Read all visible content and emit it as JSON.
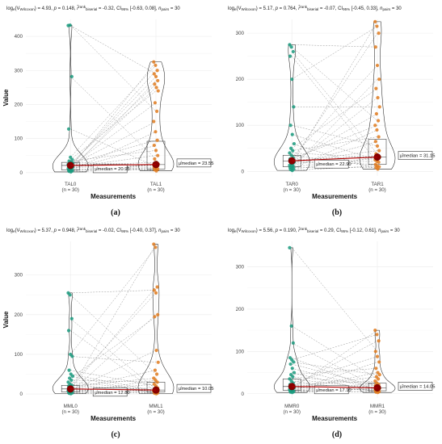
{
  "chart_data": [
    {
      "type": "scatter",
      "panel_label": "(a)",
      "subtitle": "logₑ(V_Wilcoxon) = 4.93, p = 0.148, r̂_biserial^rank = -0.32, CI₉₅% [-0.63, 0.08], n_pairs = 30",
      "subtitle_parts": {
        "v": "4.93",
        "p": "0.148",
        "r": "-0.32",
        "ci": "[-0.63, 0.08]",
        "n": "30"
      },
      "xlabel": "Measurements",
      "ylabel": "Value",
      "ylim": [
        -10,
        450
      ],
      "yticks": [
        0,
        100,
        200,
        300,
        400
      ],
      "groups": [
        {
          "name": "TAL0",
          "n_label": "(n = 30)",
          "color": "#1a9a7e",
          "median": 20.95,
          "median_label": "μ̂median = 20.95",
          "q1": 8,
          "q3": 30,
          "values": [
            432,
            433,
            282,
            128,
            45,
            38,
            34,
            30,
            28,
            26,
            25,
            24,
            23,
            22,
            21,
            21,
            20,
            19,
            18,
            16,
            15,
            14,
            12,
            10,
            8,
            7,
            6,
            5,
            4,
            2
          ]
        },
        {
          "name": "TAL1",
          "n_label": "(n = 30)",
          "color": "#e07b1e",
          "median": 23.55,
          "median_label": "μ̂median = 23.55",
          "q1": 10,
          "q3": 92,
          "values": [
            325,
            315,
            300,
            290,
            282,
            270,
            260,
            250,
            240,
            205,
            180,
            150,
            120,
            95,
            80,
            65,
            50,
            40,
            30,
            25,
            24,
            23,
            22,
            20,
            18,
            15,
            12,
            10,
            8,
            5
          ]
        }
      ]
    },
    {
      "type": "scatter",
      "panel_label": "(b)",
      "subtitle": "logₑ(V_Wilcoxon) = 5.17, p = 0.764, r̂_biserial^rank = -0.07, CI₉₅% [-0.45, 0.33], n_pairs = 30",
      "subtitle_parts": {
        "v": "5.17",
        "p": "0.764",
        "r": "-0.07",
        "ci": "[-0.45, 0.33]",
        "n": "30"
      },
      "xlabel": "Measurements",
      "ylabel": "",
      "ylim": [
        -10,
        330
      ],
      "yticks": [
        0,
        100,
        200,
        300
      ],
      "groups": [
        {
          "name": "TAR0",
          "n_label": "(n = 30)",
          "color": "#1a9a7e",
          "median": 22.9,
          "median_label": "μ̂median = 22.90",
          "q1": 10,
          "q3": 35,
          "values": [
            275,
            270,
            260,
            250,
            200,
            140,
            100,
            80,
            60,
            50,
            45,
            40,
            35,
            30,
            27,
            25,
            23,
            22,
            21,
            20,
            18,
            15,
            13,
            12,
            10,
            8,
            7,
            5,
            4,
            2
          ]
        },
        {
          "name": "TAR1",
          "n_label": "(n = 30)",
          "color": "#e07b1e",
          "median": 31.15,
          "median_label": "μ̂median = 31.15",
          "q1": 15,
          "q3": 70,
          "values": [
            325,
            315,
            300,
            270,
            230,
            200,
            180,
            160,
            140,
            125,
            110,
            100,
            90,
            75,
            65,
            55,
            45,
            38,
            33,
            31,
            30,
            28,
            25,
            22,
            20,
            15,
            12,
            10,
            8,
            5
          ]
        }
      ]
    },
    {
      "type": "scatter",
      "panel_label": "(c)",
      "subtitle": "logₑ(V_Wilcoxon) = 5.37, p = 0.948, r̂_biserial^rank = -0.02, CI₉₅% [-0.40, 0.37], n_pairs = 30",
      "subtitle_parts": {
        "v": "5.37",
        "p": "0.948",
        "r": "-0.02",
        "ci": "[-0.40, 0.37]",
        "n": "30"
      },
      "xlabel": "Measurements",
      "ylabel": "Value",
      "ylim": [
        -10,
        385
      ],
      "yticks": [
        0,
        100,
        200,
        300
      ],
      "groups": [
        {
          "name": "MML0",
          "n_label": "(n = 30)",
          "color": "#1a9a7e",
          "median": 12.8,
          "median_label": "μ̂median = 12.80",
          "q1": 5,
          "q3": 22,
          "values": [
            255,
            250,
            190,
            160,
            100,
            95,
            60,
            50,
            45,
            40,
            35,
            30,
            25,
            22,
            20,
            18,
            15,
            13,
            12,
            11,
            10,
            9,
            8,
            7,
            6,
            5,
            4,
            3,
            2,
            1
          ]
        },
        {
          "name": "MML1",
          "n_label": "(n = 30)",
          "color": "#e07b1e",
          "median": 10.05,
          "median_label": "μ̂median = 10.05",
          "q1": 5,
          "q3": 30,
          "values": [
            378,
            370,
            270,
            262,
            255,
            200,
            195,
            110,
            80,
            60,
            50,
            40,
            35,
            30,
            25,
            20,
            15,
            12,
            11,
            10,
            10,
            9,
            8,
            7,
            6,
            5,
            4,
            3,
            2,
            1
          ]
        }
      ]
    },
    {
      "type": "scatter",
      "panel_label": "(d)",
      "subtitle": "logₑ(V_Wilcoxon) = 5.56, p = 0.190, r̂_biserial^rank = 0.29, CI₉₅% [-0.12, 0.61], n_pairs = 30",
      "subtitle_parts": {
        "v": "5.56",
        "p": "0.190",
        "r": "0.29",
        "ci": "[-0.12, 0.61]",
        "n": "30"
      },
      "xlabel": "Measurements",
      "ylabel": "",
      "ylim": [
        -10,
        360
      ],
      "yticks": [
        0,
        100,
        200,
        300
      ],
      "groups": [
        {
          "name": "MMR0",
          "n_label": "(n = 30)",
          "color": "#1a9a7e",
          "median": 17.1,
          "median_label": "μ̂median = 17.10",
          "q1": 8,
          "q3": 35,
          "values": [
            345,
            160,
            120,
            85,
            80,
            75,
            70,
            60,
            50,
            45,
            40,
            35,
            30,
            25,
            22,
            20,
            18,
            17,
            16,
            15,
            14,
            12,
            10,
            9,
            8,
            7,
            6,
            5,
            4,
            3
          ]
        },
        {
          "name": "MMR1",
          "n_label": "(n = 30)",
          "color": "#e07b1e",
          "median": 14.05,
          "median_label": "μ̂median = 14.05",
          "q1": 7,
          "q3": 25,
          "values": [
            150,
            140,
            125,
            100,
            88,
            75,
            60,
            50,
            45,
            40,
            35,
            30,
            25,
            22,
            20,
            18,
            16,
            15,
            14,
            13,
            12,
            11,
            10,
            9,
            8,
            7,
            6,
            5,
            4,
            3
          ]
        }
      ]
    }
  ]
}
